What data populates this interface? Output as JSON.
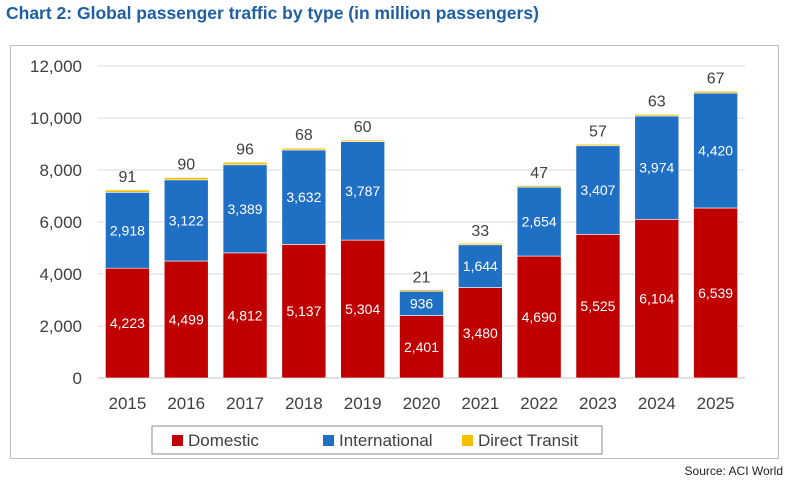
{
  "title": "Chart 2: Global passenger traffic by type (in million passengers)",
  "source": "Source: ACI World",
  "chart_data": {
    "type": "bar",
    "stacked": true,
    "categories": [
      "2015",
      "2016",
      "2017",
      "2018",
      "2019",
      "2020",
      "2021",
      "2022",
      "2023",
      "2024",
      "2025"
    ],
    "series": [
      {
        "name": "Domestic",
        "color": "#c00000",
        "values": [
          4223,
          4499,
          4812,
          5137,
          5304,
          2401,
          3480,
          4690,
          5525,
          6104,
          6539
        ]
      },
      {
        "name": "International",
        "color": "#1f6fc4",
        "values": [
          2918,
          3122,
          3389,
          3632,
          3787,
          936,
          1644,
          2654,
          3407,
          3974,
          4420
        ]
      },
      {
        "name": "Direct Transit",
        "color": "#f5c000",
        "values": [
          91,
          90,
          96,
          68,
          60,
          21,
          33,
          47,
          57,
          63,
          67
        ]
      }
    ],
    "ylim": [
      0,
      12000
    ],
    "yticks": [
      0,
      2000,
      4000,
      6000,
      8000,
      10000,
      12000
    ],
    "ytick_labels": [
      "0",
      "2,000",
      "4,000",
      "6,000",
      "8,000",
      "10,000",
      "12,000"
    ],
    "grid": true,
    "legend": "bottom"
  }
}
